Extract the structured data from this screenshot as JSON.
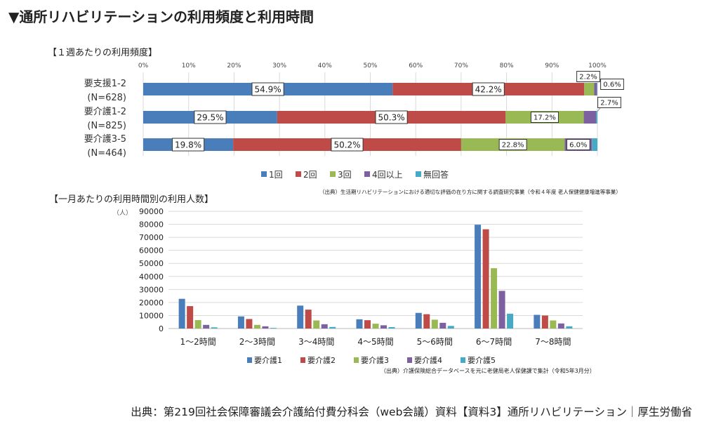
{
  "title": "▼通所リハビリテーションの利用頻度と利用時間",
  "footer": "出典：第219回社会保障審議会介護給付費分科会（web会議）資料【資料3】通所リハビリテーション｜厚生労働省",
  "colors": {
    "s1": "#4a7ebb",
    "s2": "#be4b48",
    "s3": "#98b954",
    "s4": "#7d60a0",
    "s5": "#46aac5"
  },
  "chart_data": [
    {
      "type": "bar",
      "orientation": "horizontal-stacked-100",
      "title": "【１週あたりの利用頻度】",
      "source": "（出典）生活期リハビリテーションにおける適切な評価の在り方に関する調査研究事業（令和４年度 老人保健健康増進等事業）",
      "categories": [
        "要支援1-2\n(N=628)",
        "要介護1-2\n(N=825)",
        "要介護3-5\n(N=464)"
      ],
      "xticks": [
        "0%",
        "10%",
        "20%",
        "30%",
        "40%",
        "50%",
        "60%",
        "70%",
        "80%",
        "90%",
        "100%"
      ],
      "xlim": [
        0,
        100
      ],
      "legend_position": "bottom",
      "grid": true,
      "series": [
        {
          "name": "1回",
          "values": [
            54.9,
            29.5,
            19.8
          ],
          "labels": [
            "54.9%",
            "29.5%",
            "19.8%"
          ]
        },
        {
          "name": "2回",
          "values": [
            42.2,
            50.3,
            50.2
          ],
          "labels": [
            "42.2%",
            "50.3%",
            "50.2%"
          ]
        },
        {
          "name": "3回",
          "values": [
            2.2,
            17.2,
            22.8
          ],
          "labels": [
            "2.2%",
            "17.2%",
            "22.8%"
          ]
        },
        {
          "name": "4回以上",
          "values": [
            0.6,
            2.7,
            6.0
          ],
          "labels": [
            "0.6%",
            "2.7%",
            "6.0%"
          ]
        },
        {
          "name": "無回答",
          "values": [
            0.1,
            0.3,
            1.2
          ],
          "labels": [
            "",
            "",
            ""
          ]
        }
      ]
    },
    {
      "type": "bar",
      "orientation": "vertical-grouped",
      "title": "【一月あたりの利用時間別の利用人数】",
      "source": "（出典）介護保険総合データベースを元に老健局老人保健課で集計（令和5年3月分）",
      "yunit": "（人）",
      "categories": [
        "1～2時間",
        "2～3時間",
        "3～4時間",
        "4～5時間",
        "5～6時間",
        "6～7時間",
        "7～8時間"
      ],
      "ylim": [
        0,
        90000
      ],
      "yticks": [
        0,
        10000,
        20000,
        30000,
        40000,
        50000,
        60000,
        70000,
        80000,
        90000
      ],
      "grid": true,
      "legend_position": "bottom",
      "series": [
        {
          "name": "要介護1",
          "values": [
            22800,
            9300,
            17600,
            7100,
            12000,
            79700,
            10500
          ]
        },
        {
          "name": "要介護2",
          "values": [
            17200,
            7300,
            14500,
            6400,
            11000,
            76200,
            10000
          ]
        },
        {
          "name": "要介護3",
          "values": [
            6500,
            2800,
            6200,
            3700,
            6800,
            46300,
            6200
          ]
        },
        {
          "name": "要介護4",
          "values": [
            2800,
            1700,
            3300,
            2500,
            4400,
            28900,
            3900
          ]
        },
        {
          "name": "要介護5",
          "values": [
            900,
            500,
            1200,
            1100,
            2000,
            11400,
            1700
          ]
        }
      ]
    }
  ]
}
